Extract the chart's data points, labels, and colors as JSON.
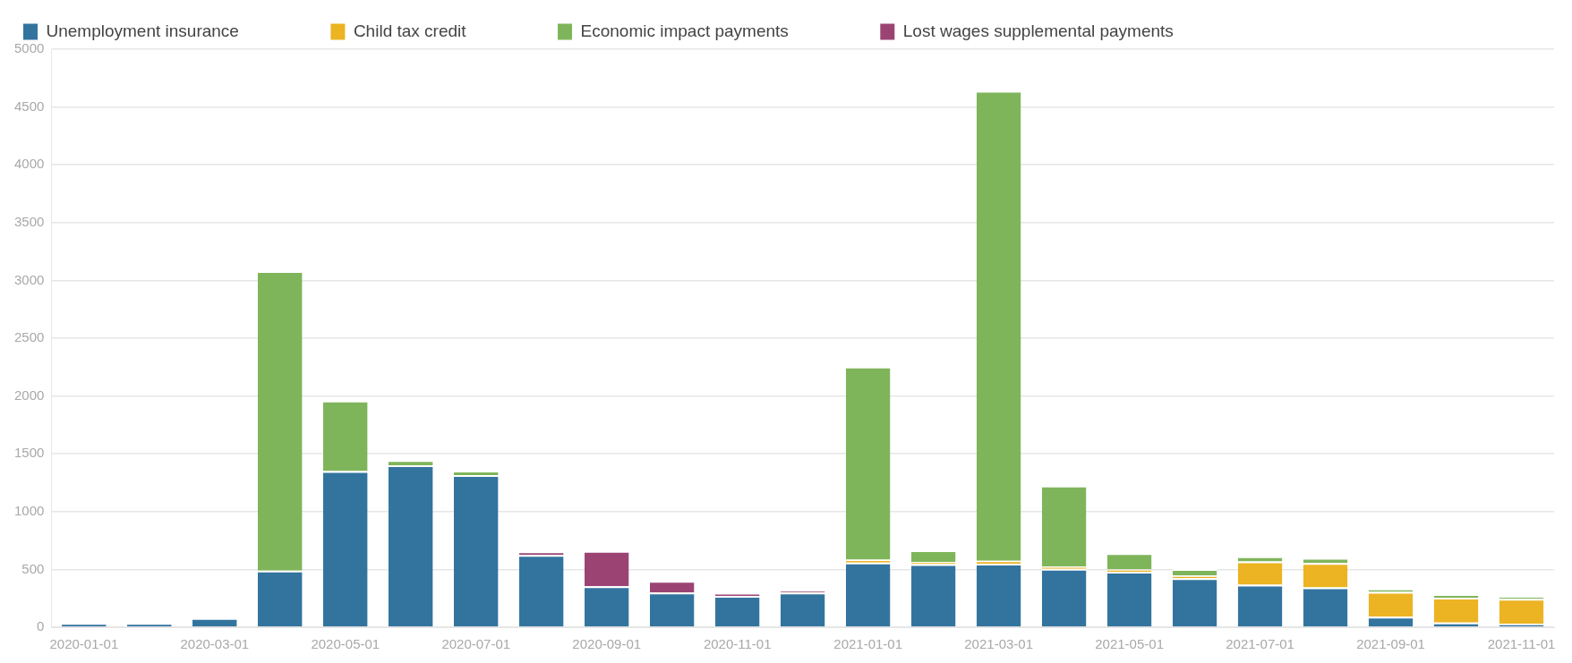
{
  "chart_data": {
    "type": "bar",
    "stacked": true,
    "legend": "top left",
    "grid": "y",
    "categories": [
      "2020-01-01",
      null,
      "2020-03-01",
      null,
      "2020-05-01",
      null,
      "2020-07-01",
      null,
      "2020-09-01",
      null,
      "2020-11-01",
      null,
      "2021-01-01",
      null,
      "2021-03-01",
      null,
      "2021-05-01",
      null,
      "2021-07-01",
      null,
      "2021-09-01",
      null,
      "2021-11-01"
    ],
    "ylim": [
      0,
      5000
    ],
    "yticks": [
      0,
      500,
      1000,
      1500,
      2000,
      2500,
      3000,
      3500,
      4000,
      4500,
      5000
    ],
    "series": [
      {
        "name": "Unemployment insurance",
        "color": "#33749f",
        "values": [
          35,
          35,
          80,
          490,
          1350,
          1400,
          1315,
          625,
          355,
          300,
          270,
          300,
          560,
          545,
          550,
          505,
          480,
          423,
          368,
          345,
          90,
          40,
          30
        ]
      },
      {
        "name": "Child tax credit",
        "color": "#ecb322",
        "values": [
          null,
          null,
          null,
          null,
          null,
          null,
          null,
          null,
          null,
          null,
          null,
          null,
          25,
          20,
          25,
          20,
          20,
          25,
          200,
          210,
          215,
          215,
          215
        ]
      },
      {
        "name": "Economic impact payments",
        "color": "#7fb55a",
        "values": [
          null,
          null,
          null,
          2590,
          610,
          45,
          40,
          null,
          null,
          null,
          null,
          null,
          1670,
          100,
          4065,
          700,
          140,
          55,
          45,
          45,
          30,
          30,
          20
        ]
      },
      {
        "name": "Lost wages supplemental payments",
        "color": "#9b4474",
        "values": [
          null,
          null,
          null,
          null,
          null,
          null,
          null,
          30,
          305,
          100,
          25,
          15,
          null,
          null,
          null,
          null,
          null,
          null,
          null,
          null,
          null,
          null,
          null
        ]
      }
    ]
  }
}
